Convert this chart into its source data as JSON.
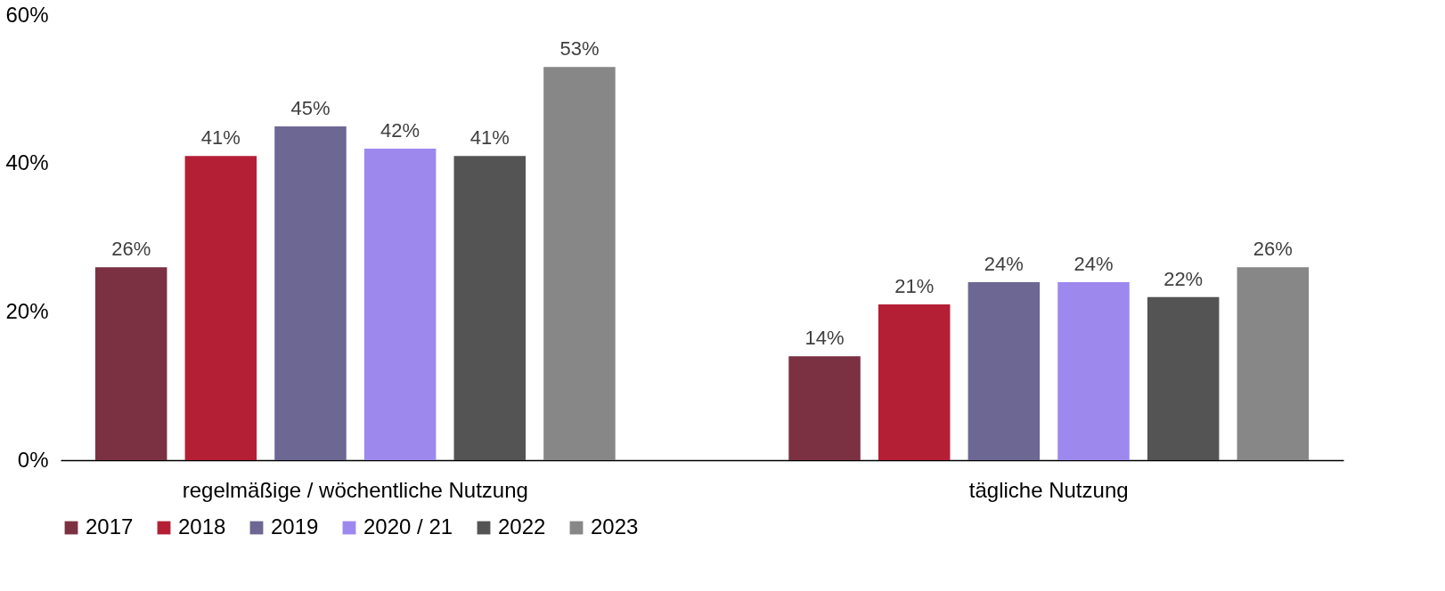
{
  "chart_data": {
    "type": "bar",
    "categories": [
      "regelmäßige / wöchentliche Nutzung",
      "tägliche Nutzung"
    ],
    "series": [
      {
        "name": "2017",
        "color": "#7b3141",
        "values": [
          26,
          14
        ]
      },
      {
        "name": "2018",
        "color": "#b41f35",
        "values": [
          41,
          21
        ]
      },
      {
        "name": "2019",
        "color": "#6d6794",
        "values": [
          45,
          24
        ]
      },
      {
        "name": "2020 / 21",
        "color": "#9d88ee",
        "values": [
          42,
          24
        ]
      },
      {
        "name": "2022",
        "color": "#545454",
        "values": [
          41,
          22
        ]
      },
      {
        "name": "2023",
        "color": "#878787",
        "values": [
          53,
          26
        ]
      }
    ],
    "ylim": [
      0,
      60
    ],
    "yticks": [
      {
        "value": 0,
        "label": "0%"
      },
      {
        "value": 20,
        "label": "20%"
      },
      {
        "value": 40,
        "label": "40%"
      },
      {
        "value": 60,
        "label": "60%"
      }
    ],
    "value_labels": [
      [
        "26%",
        "14%"
      ],
      [
        "41%",
        "21%"
      ],
      [
        "45%",
        "24%"
      ],
      [
        "42%",
        "24%"
      ],
      [
        "41%",
        "22%"
      ],
      [
        "53%",
        "26%"
      ]
    ],
    "grid": false,
    "legend": "bottom"
  }
}
